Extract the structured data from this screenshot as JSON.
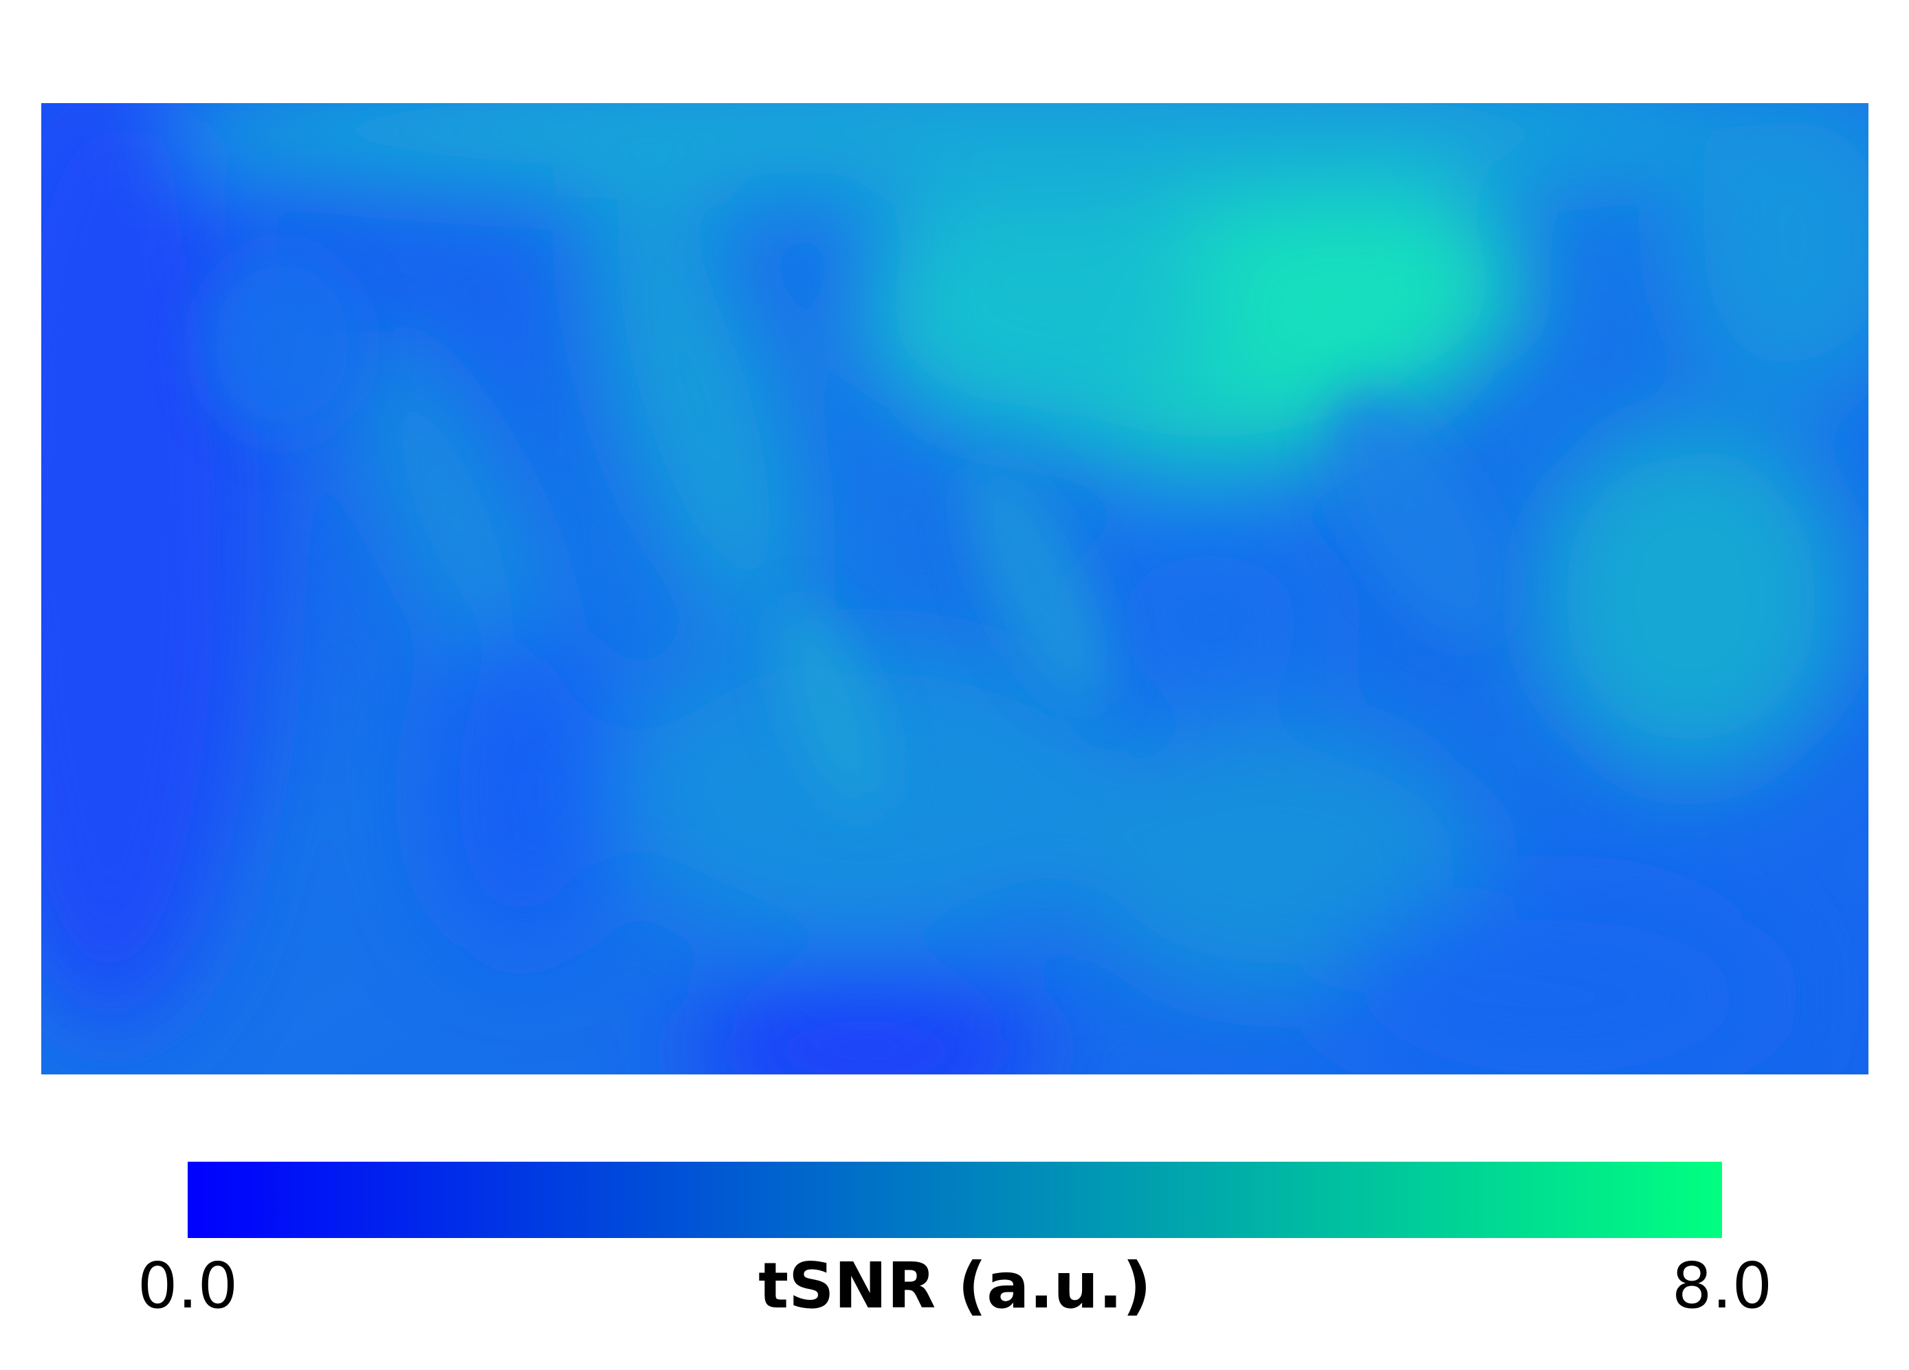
{
  "chart_data": {
    "type": "heatmap",
    "title": "",
    "xlabel": "",
    "ylabel": "",
    "grid": false,
    "colormap": {
      "name": "winter",
      "min_color": "#0000ff",
      "max_color": "#00ff80"
    },
    "colorbar": {
      "orientation": "horizontal",
      "placement": "bottom",
      "min": 0.0,
      "max": 8.0,
      "min_label": "0.0",
      "max_label": "8.0",
      "label": "tSNR (a.u.)"
    },
    "value_summary": {
      "approx_range": [
        1.0,
        5.5
      ],
      "background_value": 3.0
    }
  }
}
